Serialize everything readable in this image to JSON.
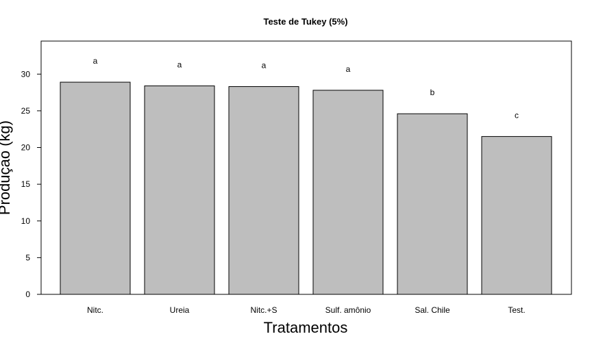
{
  "chart_data": {
    "type": "bar",
    "title": "Teste de Tukey (5%)",
    "xlabel": "Tratamentos",
    "ylabel": "Produçao (kg)",
    "categories": [
      "Nitc.",
      "Ureia",
      "Nitc.+S",
      "Sulf. amônio",
      "Sal. Chile",
      "Test."
    ],
    "values": [
      28.9,
      28.4,
      28.3,
      27.8,
      24.6,
      21.5
    ],
    "group_labels": [
      "a",
      "a",
      "a",
      "a",
      "b",
      "c"
    ],
    "ylim": [
      0,
      34.5
    ],
    "yticks": [
      0,
      5,
      10,
      15,
      20,
      25,
      30
    ],
    "bar_color": "#bebebe",
    "grid": false,
    "legend": "none"
  }
}
